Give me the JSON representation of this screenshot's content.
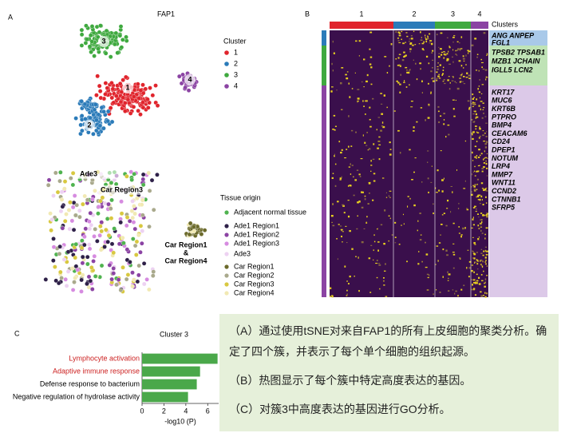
{
  "title": "FAP1",
  "panel_labels": [
    "A",
    "B",
    "C"
  ],
  "cluster_legend": {
    "title": "Cluster",
    "items": [
      {
        "label": "1",
        "color": "#e0242c"
      },
      {
        "label": "2",
        "color": "#2b7bb9"
      },
      {
        "label": "3",
        "color": "#3fa93f"
      },
      {
        "label": "4",
        "color": "#8b43a3"
      }
    ]
  },
  "tsne_cluster_labels": [
    "1",
    "2",
    "3",
    "4"
  ],
  "tissue_legend": {
    "title": "Tissue origin",
    "items": [
      {
        "label": "Adjacent normal tissue",
        "color": "#4fb34f"
      },
      {
        "label": "Ade1 Region1",
        "color": "#2e2048"
      },
      {
        "label": "Ade1 Region2",
        "color": "#8b43a3"
      },
      {
        "label": "Ade1 Region3",
        "color": "#d68be0"
      },
      {
        "label": "Ade3",
        "color": "#edd2f2"
      },
      {
        "label": "Car Region1",
        "color": "#6b6a2b"
      },
      {
        "label": "Car Region2",
        "color": "#a9a98c"
      },
      {
        "label": "Car Region3",
        "color": "#d8c840"
      },
      {
        "label": "Car Region4",
        "color": "#f1e9b3"
      }
    ]
  },
  "tsne_region_labels": {
    "ade3": "Ade3",
    "car3": "Car Region3",
    "car14": [
      "Car Region1",
      "&",
      "Car Region4"
    ]
  },
  "heatmap": {
    "legend_title": "Clusters",
    "clusters": [
      {
        "label": "1",
        "color": "#e0242c"
      },
      {
        "label": "2",
        "color": "#2b7bb9"
      },
      {
        "label": "3",
        "color": "#3fa93f"
      },
      {
        "label": "4",
        "color": "#8b43a3"
      }
    ],
    "gene_groups": [
      {
        "color": "#a9c9e9",
        "bar": "#2b7bb9",
        "genes": [
          "ANG  ANPEP",
          "FGL1"
        ]
      },
      {
        "color": "#bfe3b6",
        "bar": "#3fa93f",
        "genes": [
          "TPSB2  TPSAB1",
          "MZB1   JCHAIN",
          "IGLL5   LCN2"
        ]
      },
      {
        "color": "#dcc9e8",
        "bar": "#8b43a3",
        "genes": [
          "KRT17",
          "MUC6",
          "KRT6B",
          "PTPRO",
          "BMP4",
          "CEACAM6",
          "CD24",
          "DPEP1",
          "NOTUM",
          "LRP4",
          "MMP7",
          "WNT11",
          "CCND2",
          "CTNNB1",
          "SFRP5"
        ]
      }
    ]
  },
  "chart_data": {
    "type": "hbar",
    "title": "Cluster 3",
    "x_label": "-log10 (P)",
    "categories": [
      "Lymphocyte activation",
      "Adaptive immune response",
      "Defense response to bacterium",
      "Negative regulation of hydrolase activity"
    ],
    "label_colors": [
      "#cc1f1f",
      "#cc1f1f",
      "#000000",
      "#000000"
    ],
    "values": [
      6.9,
      5.3,
      5.0,
      4.2
    ],
    "color": "#4aa84a",
    "xlim": [
      0,
      7
    ],
    "xticks": [
      0,
      2,
      4,
      6
    ]
  },
  "description": [
    "（A）通过使用tSNE对来自FAP1的所有上皮细胞的聚类分析。确定了四个簇，并表示了每个单个细胞的组织起源。",
    "（B）热图显示了每个簇中特定高度表达的基因。",
    "（C）对簇3中高度表达的基因进行GO分析。"
  ]
}
